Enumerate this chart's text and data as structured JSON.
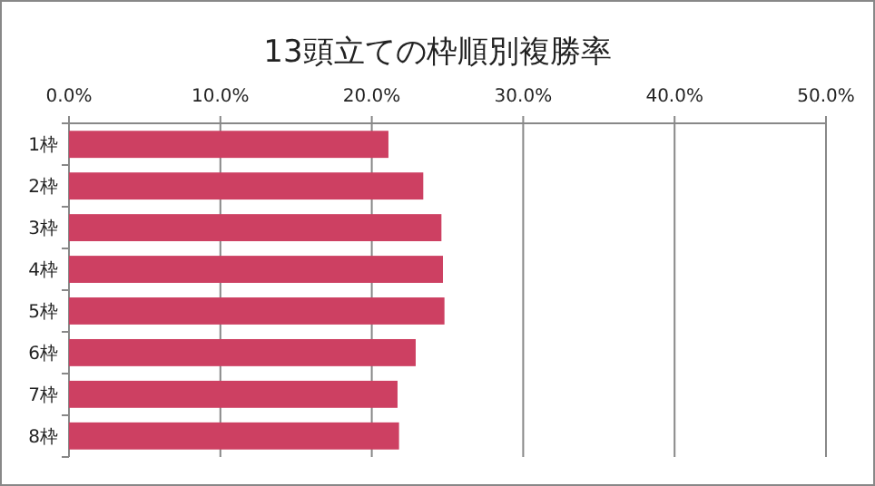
{
  "chart_data": {
    "type": "bar",
    "orientation": "horizontal",
    "title": "13頭立ての枠順別複勝率",
    "categories": [
      "1枠",
      "2枠",
      "3枠",
      "4枠",
      "5枠",
      "6枠",
      "7枠",
      "8枠"
    ],
    "values": [
      21.1,
      23.4,
      24.6,
      24.7,
      24.8,
      22.9,
      21.7,
      21.8
    ],
    "color": "#cd4062",
    "xlim": [
      0,
      50
    ],
    "xticks": [
      {
        "value": 0,
        "label": "0.0%"
      },
      {
        "value": 10,
        "label": "10.0%"
      },
      {
        "value": 20,
        "label": "20.0%"
      },
      {
        "value": 30,
        "label": "30.0%"
      },
      {
        "value": 40,
        "label": "40.0%"
      },
      {
        "value": 50,
        "label": "50.0%"
      }
    ],
    "grid": "x"
  }
}
